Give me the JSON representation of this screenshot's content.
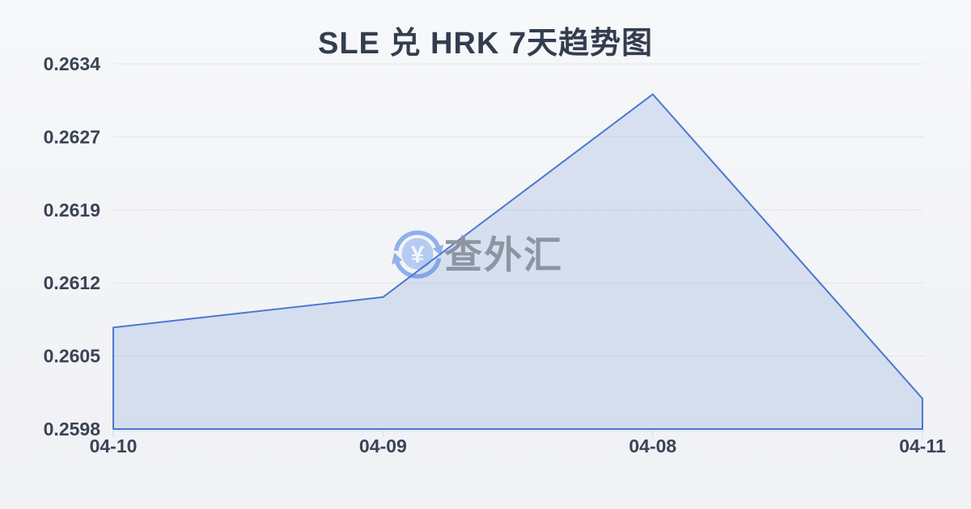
{
  "chart_data": {
    "type": "area",
    "title": "SLE 兑 HRK 7天趋势图",
    "categories": [
      "04-10",
      "04-09",
      "04-08",
      "04-11"
    ],
    "values": [
      0.2608,
      0.2611,
      0.2631,
      0.2601
    ],
    "ylim": [
      0.2598,
      0.2634
    ],
    "ytick_labels": [
      "0.2634",
      "0.2627",
      "0.2619",
      "0.2612",
      "0.2605",
      "0.2598"
    ],
    "xlabel": "",
    "ylabel": "",
    "grid": "horizontal",
    "legend": "none"
  },
  "watermark": {
    "text": "查外汇",
    "icon_glyph": "¥"
  },
  "colors": {
    "background": "#f2f3f6",
    "title_text": "#333d4e",
    "axis_text": "#3a4456",
    "gridline": "#e4e5e9",
    "axis_line": "#dcdee2",
    "tick_mark": "#d9dbdf",
    "line": "#4a78d2",
    "area_fill": "rgba(74,120,210,0.17)",
    "watermark_text": "#8d94a2",
    "watermark_arrow": "#8fb0ec",
    "watermark_circle": "#b5cbf1",
    "watermark_glyph": "#f2f6fd"
  }
}
